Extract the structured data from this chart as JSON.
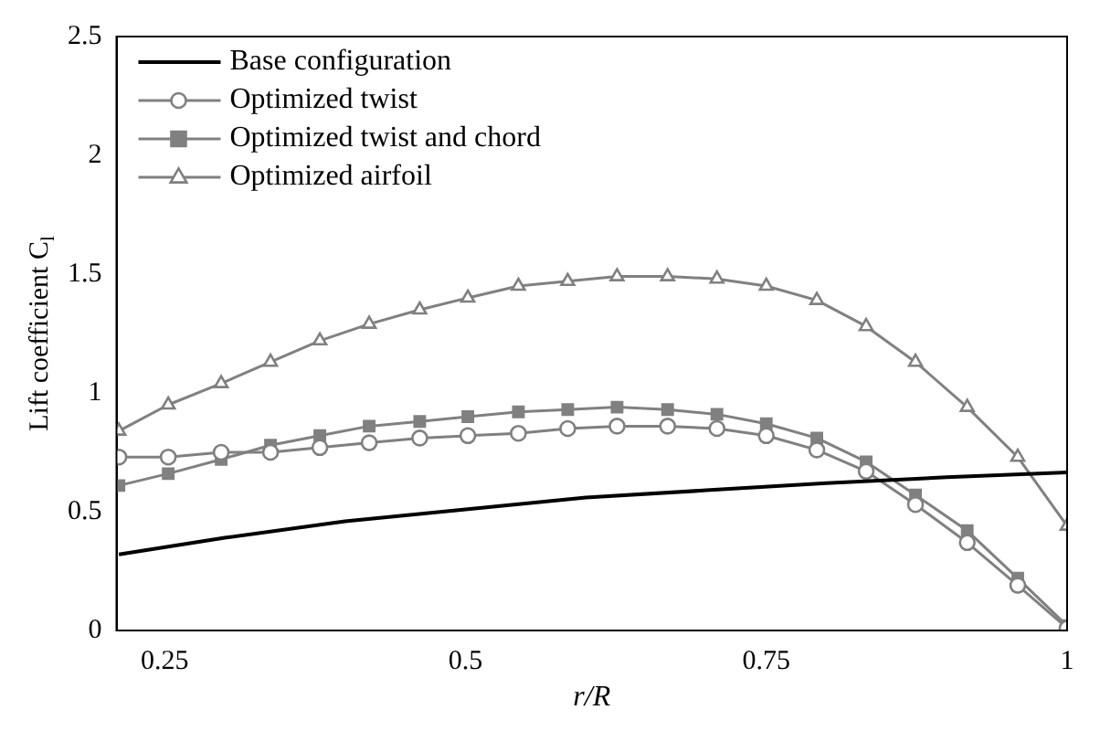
{
  "chart_data": {
    "type": "line",
    "xlabel": "r/R",
    "ylabel": "Lift coefficient C$_{l}$",
    "x": [
      0.212,
      0.253,
      0.297,
      0.338,
      0.379,
      0.42,
      0.462,
      0.502,
      0.544,
      0.585,
      0.626,
      0.668,
      0.709,
      0.75,
      0.792,
      0.833,
      0.874,
      0.917,
      0.959,
      1.0
    ],
    "series": [
      {
        "name": "Base configuration",
        "color": "#000000",
        "marker": "none",
        "x": [
          0.212,
          0.3,
          0.4,
          0.5,
          0.6,
          0.7,
          0.8,
          0.9,
          1.0
        ],
        "values": [
          0.32,
          0.39,
          0.46,
          0.51,
          0.56,
          0.59,
          0.62,
          0.645,
          0.665
        ]
      },
      {
        "name": "Optimized twist",
        "color": "#808080",
        "marker": "circle",
        "values": [
          0.73,
          0.73,
          0.75,
          0.75,
          0.77,
          0.79,
          0.81,
          0.82,
          0.83,
          0.85,
          0.86,
          0.86,
          0.85,
          0.82,
          0.76,
          0.67,
          0.53,
          0.37,
          0.19,
          0.01
        ]
      },
      {
        "name": "Optimized twist and chord",
        "color": "#808080",
        "marker": "square",
        "values": [
          0.61,
          0.66,
          0.72,
          0.78,
          0.82,
          0.86,
          0.88,
          0.9,
          0.92,
          0.93,
          0.94,
          0.93,
          0.91,
          0.87,
          0.81,
          0.71,
          0.57,
          0.42,
          0.22,
          0.02
        ]
      },
      {
        "name": "Optimized airfoil",
        "color": "#808080",
        "marker": "triangle",
        "values": [
          0.84,
          0.95,
          1.04,
          1.13,
          1.22,
          1.29,
          1.35,
          1.4,
          1.45,
          1.47,
          1.49,
          1.49,
          1.48,
          1.45,
          1.39,
          1.28,
          1.13,
          0.94,
          0.73,
          0.44
        ]
      }
    ],
    "xlim": [
      0.21,
      1.0
    ],
    "xticks": [
      0.25,
      0.5,
      0.75,
      1
    ],
    "ylim": [
      0,
      2.5
    ],
    "yticks": [
      0,
      0.5,
      1,
      1.5,
      2,
      2.5
    ],
    "grid": false,
    "legend": "top left",
    "line_style": "solid"
  }
}
